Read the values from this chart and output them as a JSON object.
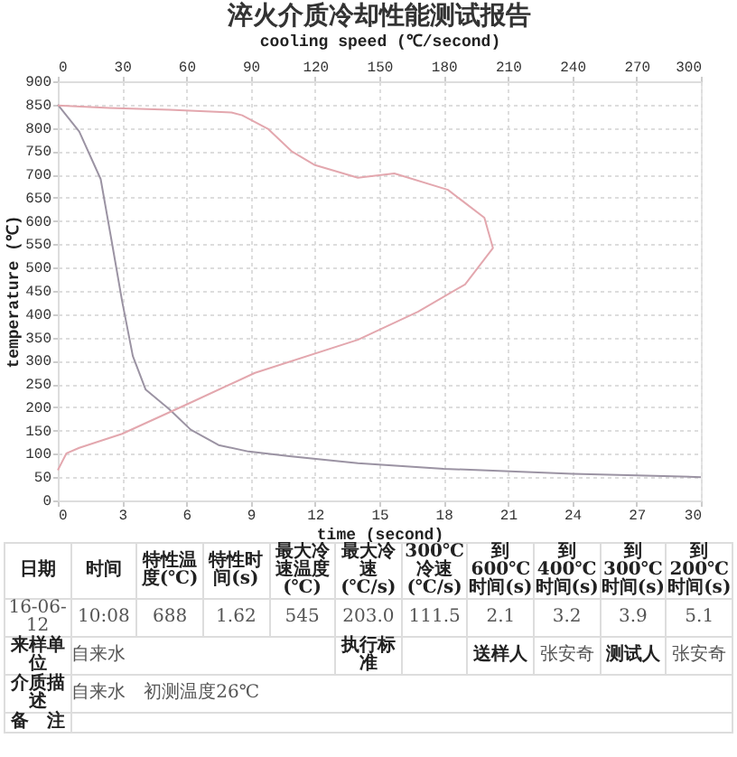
{
  "chart_data": {
    "type": "line",
    "title": "淬火介质冷却性能测试报告",
    "xlabel": "time (second)",
    "x2label": "cooling speed (℃/second)",
    "ylabel": "temperature (℃)",
    "xlim": [
      0,
      30
    ],
    "xticks": [
      0,
      3,
      6,
      9,
      12,
      15,
      18,
      21,
      24,
      27,
      30
    ],
    "x2lim": [
      0,
      300
    ],
    "x2ticks": [
      0,
      30,
      60,
      90,
      120,
      150,
      180,
      210,
      240,
      270,
      300
    ],
    "ylim": [
      0,
      900
    ],
    "yticks": [
      0,
      50,
      100,
      150,
      200,
      250,
      300,
      350,
      400,
      450,
      500,
      550,
      600,
      650,
      700,
      750,
      800,
      850,
      900
    ],
    "grid": true,
    "line_style": "solid",
    "marker": "none",
    "series": [
      {
        "color": "#9b93a3",
        "x": [
          0,
          1,
          2,
          2.5,
          3,
          3.5,
          4.1,
          5.2,
          6.2,
          7.5,
          8.9,
          10.8,
          14,
          18,
          24,
          27,
          30
        ],
        "values": [
          850,
          792,
          690,
          560,
          428,
          310,
          238,
          196,
          152,
          119,
          105,
          95,
          80,
          68,
          57,
          54,
          50
        ]
      },
      {
        "axis": "x2",
        "color": "#e3a7ae",
        "x": [
          0,
          4,
          10,
          30,
          61,
          92,
          140,
          168,
          190,
          203,
          199,
          182,
          157,
          140,
          120,
          109,
          98,
          86,
          81,
          52,
          24,
          0
        ],
        "values": [
          65,
          101,
          113,
          143,
          208,
          274,
          345,
          405,
          464,
          542,
          607,
          667,
          702,
          693,
          720,
          750,
          798,
          827,
          833,
          839,
          843,
          848
        ]
      }
    ],
    "annotations": [
      "日期",
      "时间",
      "特性温度(℃)",
      "特性时间(s)",
      "最大冷速温度(℃)",
      "最大冷速(℃/s)",
      "300℃冷速(℃/s)",
      "到600℃时间(s)",
      "到400℃时间(s)",
      "到300℃时间(s)",
      "到200℃时间(s)",
      "16-06-12",
      "10:08",
      "688",
      "1.62",
      "545",
      "203.0",
      "111.5",
      "2.1",
      "3.2",
      "3.9",
      "5.1",
      "来样单位",
      "自来水",
      "执行标准",
      "送样人",
      "张安奇",
      "测试人",
      "张安奇",
      "介质描述",
      "自来水　初测温度26℃",
      "备　注"
    ]
  }
}
